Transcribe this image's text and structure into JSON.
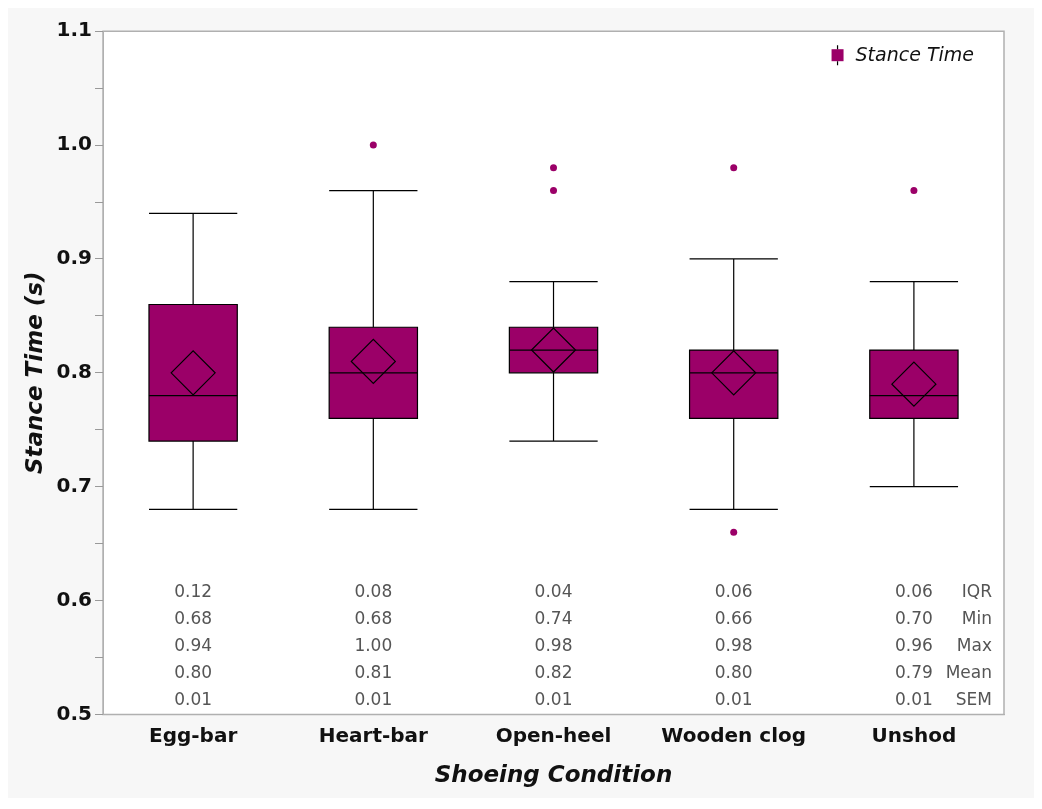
{
  "chart_data": {
    "type": "box",
    "xlabel": "Shoeing Condition",
    "ylabel": "Stance Time (s)",
    "categories": [
      "Egg-bar",
      "Heart-bar",
      "Open-heel",
      "Wooden clog",
      "Unshod"
    ],
    "series": [
      {
        "name": "Stance Time",
        "color": "#9b0068",
        "boxes": [
          {
            "low": 0.68,
            "q1": 0.74,
            "median": 0.78,
            "q3": 0.86,
            "high": 0.94,
            "mean": 0.8
          },
          {
            "low": 0.68,
            "q1": 0.76,
            "median": 0.8,
            "q3": 0.84,
            "high": 0.96,
            "mean": 0.81,
            "outliers": [
              1.0
            ]
          },
          {
            "low": 0.74,
            "q1": 0.8,
            "median": 0.82,
            "q3": 0.84,
            "high": 0.88,
            "mean": 0.82,
            "outliers": [
              0.96,
              0.98
            ]
          },
          {
            "low": 0.68,
            "q1": 0.76,
            "median": 0.8,
            "q3": 0.82,
            "high": 0.9,
            "mean": 0.8,
            "outliers": [
              0.66,
              0.98
            ]
          },
          {
            "low": 0.7,
            "q1": 0.76,
            "median": 0.78,
            "q3": 0.82,
            "high": 0.88,
            "mean": 0.79,
            "outliers": [
              0.96
            ]
          }
        ]
      }
    ],
    "ylim": [
      0.5,
      1.1
    ],
    "yticks": [
      0.5,
      {
        "value": 0.55,
        "label": null
      },
      0.6,
      {
        "value": 0.65,
        "label": null
      },
      0.7,
      {
        "value": 0.75,
        "label": null
      },
      0.8,
      {
        "value": 0.85,
        "label": null
      },
      0.9,
      {
        "value": 0.95,
        "label": null
      },
      {
        "value": 1.0,
        "label": "1.0"
      },
      {
        "value": 1.05,
        "label": null
      },
      1.1
    ],
    "legend": "top right",
    "grid": false,
    "annotations": [
      "0.12",
      "0.08",
      "0.04",
      "0.06",
      "0.06",
      "IQR",
      "0.68",
      "0.68",
      "0.74",
      "0.66",
      "0.70",
      "Min",
      "0.94",
      "1.00",
      "0.98",
      "0.98",
      "0.96",
      "Max",
      "0.80",
      "0.81",
      "0.82",
      "0.80",
      "0.79",
      "Mean",
      "0.01",
      "0.01",
      "0.01",
      "0.01",
      "0.01",
      "SEM"
    ]
  }
}
